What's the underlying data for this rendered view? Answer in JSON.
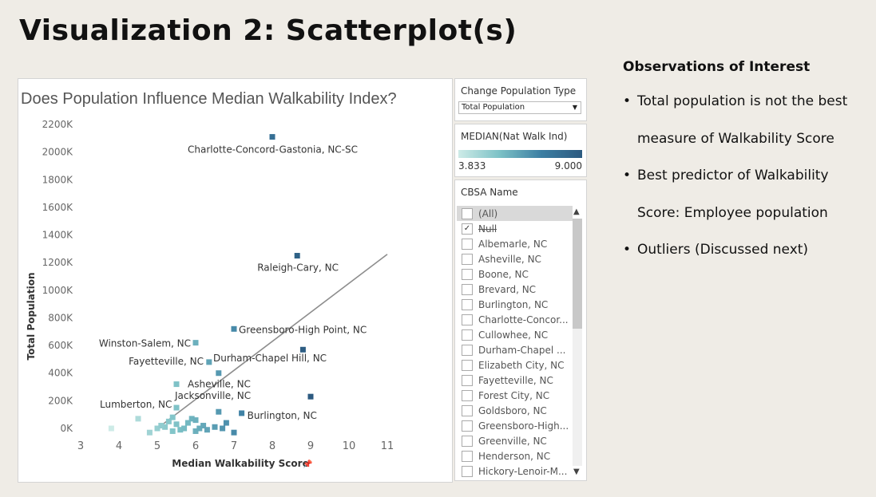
{
  "slide": {
    "title": "Visualization 2: Scatterplot(s)",
    "observations_title": "Observations of Interest",
    "observations": [
      "Total population is not the best",
      "measure of Walkability Score",
      "Best predictor of Walkability",
      "Score: Employee population",
      "Outliers (Discussed next)"
    ],
    "bullet_flags": [
      true,
      false,
      true,
      false,
      true
    ]
  },
  "filters": {
    "population_type": {
      "title": "Change Population Type",
      "value": "Total Population"
    },
    "color_legend": {
      "title": "MEDIAN(Nat Walk Ind)",
      "min_label": "3.833",
      "max_label": "9.000",
      "ramp": [
        "#cdebe7",
        "#7cc1c6",
        "#3d7fa3",
        "#2c5a80"
      ]
    },
    "cbsa": {
      "title": "CBSA Name",
      "items": [
        {
          "label": "(All)",
          "checked": false
        },
        {
          "label": "Null",
          "checked": true
        },
        {
          "label": "Albemarle, NC",
          "checked": false
        },
        {
          "label": "Asheville, NC",
          "checked": false
        },
        {
          "label": "Boone, NC",
          "checked": false
        },
        {
          "label": "Brevard, NC",
          "checked": false
        },
        {
          "label": "Burlington, NC",
          "checked": false
        },
        {
          "label": "Charlotte-Concor...",
          "checked": false
        },
        {
          "label": "Cullowhee, NC",
          "checked": false
        },
        {
          "label": "Durham-Chapel ...",
          "checked": false
        },
        {
          "label": "Elizabeth City, NC",
          "checked": false
        },
        {
          "label": "Fayetteville, NC",
          "checked": false
        },
        {
          "label": "Forest City, NC",
          "checked": false
        },
        {
          "label": "Goldsboro, NC",
          "checked": false
        },
        {
          "label": "Greensboro-High...",
          "checked": false
        },
        {
          "label": "Greenville, NC",
          "checked": false
        },
        {
          "label": "Henderson, NC",
          "checked": false
        },
        {
          "label": "Hickory-Lenoir-M...",
          "checked": false
        }
      ]
    }
  },
  "chart_data": {
    "type": "scatter",
    "title": "Does Population Influence Median Walkability Index?",
    "xlabel": "Median Walkability Score",
    "ylabel": "Total Population",
    "xlim": [
      3,
      11
    ],
    "ylim": [
      0,
      2200000
    ],
    "x_ticks": [
      "3",
      "4",
      "5",
      "6",
      "7",
      "8",
      "9",
      "10",
      "11"
    ],
    "y_ticks": [
      "0K",
      "200K",
      "400K",
      "600K",
      "800K",
      "1000K",
      "1200K",
      "1400K",
      "1600K",
      "1800K",
      "2000K",
      "2200K"
    ],
    "grid": false,
    "trend_line": {
      "x": [
        5.0,
        11.0
      ],
      "y": [
        0,
        1260000
      ]
    },
    "points": [
      {
        "x": 8.0,
        "y": 2110000,
        "label": "Charlotte-Concord-Gastonia, NC-SC"
      },
      {
        "x": 8.65,
        "y": 1250000,
        "label": "Raleigh-Cary, NC"
      },
      {
        "x": 7.0,
        "y": 720000,
        "label": "Greensboro-High Point, NC"
      },
      {
        "x": 6.0,
        "y": 620000,
        "label": "Winston-Salem, NC"
      },
      {
        "x": 6.35,
        "y": 480000,
        "label": "Durham-Chapel Hill, NC"
      },
      {
        "x": 6.6,
        "y": 400000,
        "label": ""
      },
      {
        "x": 5.5,
        "y": 320000,
        "label": "Asheville, NC"
      },
      {
        "x": 8.8,
        "y": 570000,
        "label": ""
      },
      {
        "x": 9.0,
        "y": 230000,
        "label": ""
      },
      {
        "x": 5.5,
        "y": 150000,
        "label": "Jacksonville, NC"
      },
      {
        "x": 4.5,
        "y": 70000,
        "label": "Lumberton, NC"
      },
      {
        "x": 7.2,
        "y": 110000,
        "label": "Burlington, NC"
      },
      {
        "x": 3.8,
        "y": 0,
        "label": ""
      },
      {
        "x": 4.8,
        "y": -30000,
        "label": ""
      },
      {
        "x": 5.0,
        "y": 0,
        "label": ""
      },
      {
        "x": 5.2,
        "y": 10000,
        "label": ""
      },
      {
        "x": 5.3,
        "y": 50000,
        "label": ""
      },
      {
        "x": 5.4,
        "y": -20000,
        "label": ""
      },
      {
        "x": 5.5,
        "y": 30000,
        "label": ""
      },
      {
        "x": 5.6,
        "y": -10000,
        "label": ""
      },
      {
        "x": 5.7,
        "y": 0,
        "label": ""
      },
      {
        "x": 5.8,
        "y": 40000,
        "label": ""
      },
      {
        "x": 5.9,
        "y": 70000,
        "label": ""
      },
      {
        "x": 6.0,
        "y": -20000,
        "label": ""
      },
      {
        "x": 6.1,
        "y": 0,
        "label": ""
      },
      {
        "x": 6.2,
        "y": 20000,
        "label": ""
      },
      {
        "x": 6.3,
        "y": -10000,
        "label": ""
      },
      {
        "x": 6.5,
        "y": 10000,
        "label": ""
      },
      {
        "x": 6.6,
        "y": 120000,
        "label": ""
      },
      {
        "x": 6.7,
        "y": 0,
        "label": ""
      },
      {
        "x": 6.8,
        "y": 40000,
        "label": ""
      },
      {
        "x": 7.0,
        "y": -30000,
        "label": ""
      },
      {
        "x": 5.1,
        "y": 20000,
        "label": ""
      },
      {
        "x": 5.4,
        "y": 80000,
        "label": ""
      },
      {
        "x": 6.0,
        "y": 60000,
        "label": ""
      }
    ],
    "color_scale": {
      "min": 3.833,
      "max": 9.0
    }
  }
}
